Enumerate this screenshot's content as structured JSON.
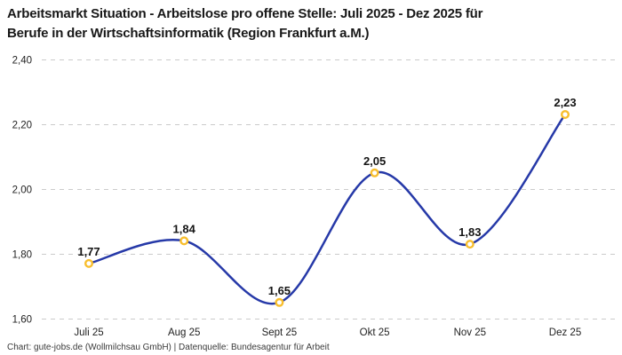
{
  "title": {
    "line1": "Arbeitsmarkt Situation - Arbeitslose pro offene Stelle: Juli 2025 - Dez 2025 für",
    "line2": "Berufe in der Wirtschaftsinformatik (Region Frankfurt a.M.)"
  },
  "footer": "Chart: gute-jobs.de (Wollmilchsau GmbH) | Datenquelle: Bundesagentur für Arbeit",
  "chart_data": {
    "type": "line",
    "title": "Arbeitsmarkt Situation - Arbeitslose pro offene Stelle: Juli 2025 - Dez 2025 für Berufe in der Wirtschaftsinformatik (Region Frankfurt a.M.)",
    "categories": [
      "Juli 25",
      "Aug 25",
      "Sept 25",
      "Okt 25",
      "Nov 25",
      "Dez 25"
    ],
    "values": [
      1.77,
      1.84,
      1.65,
      2.05,
      1.83,
      2.23
    ],
    "point_labels": [
      "1,77",
      "1,84",
      "1,65",
      "2,05",
      "1,83",
      "2,23"
    ],
    "y_tick_labels": [
      "2,40",
      "2,20",
      "2,00",
      "1,80",
      "1,60"
    ],
    "y_tick_values": [
      2.4,
      2.2,
      2.0,
      1.8,
      1.6
    ],
    "ylim": [
      1.6,
      2.4
    ],
    "xlabel": "",
    "ylabel": "",
    "grid": "horizontal-dashed",
    "legend": "none",
    "interpolation": "spline",
    "colors": {
      "line": "#2639A8",
      "marker_ring": "#F8BE2D",
      "marker_fill": "#FFFFFF",
      "grid": "#CBCBCB",
      "label_text": "#141414",
      "tick_text": "#222222",
      "footer_text": "#3A3A3A"
    }
  }
}
